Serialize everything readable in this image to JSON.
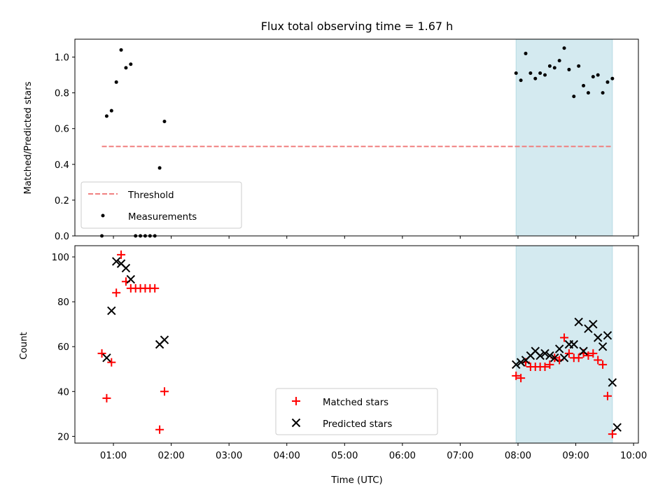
{
  "chart_data": [
    {
      "type": "scatter",
      "title": "Flux total observing time = 1.67 h",
      "xlabel": "",
      "ylabel": "Matched/Predicted stars",
      "xlim": [
        "00:20",
        "10:05"
      ],
      "ylim": [
        0,
        1.1
      ],
      "yticks": [
        "0.0",
        "0.2",
        "0.4",
        "0.6",
        "0.8",
        "1.0"
      ],
      "shaded_region": {
        "x_start": "07:58",
        "x_end": "09:38",
        "color": "#d4eaf0"
      },
      "threshold": {
        "name": "Threshold",
        "y": 0.5,
        "x_start": "00:48",
        "x_end": "09:38",
        "color": "#f08080"
      },
      "legend": {
        "position": "lower-left",
        "entries": [
          "Threshold",
          "Measurements"
        ]
      },
      "series": [
        {
          "name": "Measurements",
          "color": "#000000",
          "marker": "dot",
          "points": [
            [
              "00:48",
              0.0
            ],
            [
              "00:53",
              0.67
            ],
            [
              "00:58",
              0.7
            ],
            [
              "01:03",
              0.86
            ],
            [
              "01:08",
              1.04
            ],
            [
              "01:13",
              0.94
            ],
            [
              "01:18",
              0.96
            ],
            [
              "01:23",
              0.0
            ],
            [
              "01:28",
              0.0
            ],
            [
              "01:33",
              0.0
            ],
            [
              "01:38",
              0.0
            ],
            [
              "01:43",
              0.0
            ],
            [
              "01:48",
              0.38
            ],
            [
              "01:53",
              0.64
            ],
            [
              "07:58",
              0.91
            ],
            [
              "08:03",
              0.87
            ],
            [
              "08:08",
              1.02
            ],
            [
              "08:13",
              0.91
            ],
            [
              "08:18",
              0.88
            ],
            [
              "08:23",
              0.91
            ],
            [
              "08:28",
              0.9
            ],
            [
              "08:33",
              0.95
            ],
            [
              "08:38",
              0.94
            ],
            [
              "08:43",
              0.98
            ],
            [
              "08:48",
              1.05
            ],
            [
              "08:53",
              0.93
            ],
            [
              "08:58",
              0.78
            ],
            [
              "09:03",
              0.95
            ],
            [
              "09:08",
              0.84
            ],
            [
              "09:13",
              0.8
            ],
            [
              "09:18",
              0.89
            ],
            [
              "09:23",
              0.9
            ],
            [
              "09:28",
              0.8
            ],
            [
              "09:33",
              0.86
            ],
            [
              "09:38",
              0.88
            ]
          ]
        }
      ]
    },
    {
      "type": "scatter",
      "title": "",
      "xlabel": "Time (UTC)",
      "ylabel": "Count",
      "xlim": [
        "00:20",
        "10:05"
      ],
      "ylim": [
        17,
        105
      ],
      "yticks": [
        "20",
        "40",
        "60",
        "80",
        "100"
      ],
      "xticks": [
        "01:00",
        "02:00",
        "03:00",
        "04:00",
        "05:00",
        "06:00",
        "07:00",
        "08:00",
        "09:00",
        "10:00"
      ],
      "shaded_region": {
        "x_start": "07:58",
        "x_end": "09:38",
        "color": "#d4eaf0"
      },
      "legend": {
        "position": "lower-center",
        "entries": [
          "Matched stars",
          "Predicted stars"
        ]
      },
      "series": [
        {
          "name": "Matched stars",
          "color": "#ff0000",
          "marker": "plus",
          "points": [
            [
              "00:48",
              57
            ],
            [
              "00:53",
              37
            ],
            [
              "00:58",
              53
            ],
            [
              "01:03",
              84
            ],
            [
              "01:08",
              101
            ],
            [
              "01:13",
              89
            ],
            [
              "01:18",
              86
            ],
            [
              "01:23",
              86
            ],
            [
              "01:28",
              86
            ],
            [
              "01:33",
              86
            ],
            [
              "01:38",
              86
            ],
            [
              "01:43",
              86
            ],
            [
              "01:48",
              23
            ],
            [
              "01:53",
              40
            ],
            [
              "07:58",
              47
            ],
            [
              "08:03",
              46
            ],
            [
              "08:08",
              53
            ],
            [
              "08:13",
              51
            ],
            [
              "08:18",
              51
            ],
            [
              "08:23",
              51
            ],
            [
              "08:28",
              51
            ],
            [
              "08:33",
              52
            ],
            [
              "08:38",
              55
            ],
            [
              "08:43",
              54
            ],
            [
              "08:48",
              64
            ],
            [
              "08:53",
              57
            ],
            [
              "08:58",
              55
            ],
            [
              "09:03",
              55
            ],
            [
              "09:08",
              57
            ],
            [
              "09:13",
              56
            ],
            [
              "09:18",
              57
            ],
            [
              "09:23",
              54
            ],
            [
              "09:28",
              52
            ],
            [
              "09:33",
              38
            ],
            [
              "09:38",
              21
            ]
          ]
        },
        {
          "name": "Predicted stars",
          "color": "#000000",
          "marker": "x",
          "points": [
            [
              "00:53",
              55
            ],
            [
              "00:58",
              76
            ],
            [
              "01:03",
              98
            ],
            [
              "01:08",
              97
            ],
            [
              "01:13",
              95
            ],
            [
              "01:18",
              90
            ],
            [
              "01:48",
              61
            ],
            [
              "01:53",
              63
            ],
            [
              "07:58",
              52
            ],
            [
              "08:03",
              53
            ],
            [
              "08:08",
              54
            ],
            [
              "08:13",
              56
            ],
            [
              "08:18",
              58
            ],
            [
              "08:23",
              56
            ],
            [
              "08:28",
              57
            ],
            [
              "08:33",
              56
            ],
            [
              "08:38",
              55
            ],
            [
              "08:43",
              59
            ],
            [
              "08:48",
              55
            ],
            [
              "08:53",
              61
            ],
            [
              "08:58",
              61
            ],
            [
              "09:03",
              71
            ],
            [
              "09:08",
              58
            ],
            [
              "09:13",
              68
            ],
            [
              "09:18",
              70
            ],
            [
              "09:23",
              64
            ],
            [
              "09:28",
              60
            ],
            [
              "09:33",
              65
            ],
            [
              "09:38",
              44
            ],
            [
              "09:43",
              24
            ]
          ]
        }
      ]
    }
  ]
}
